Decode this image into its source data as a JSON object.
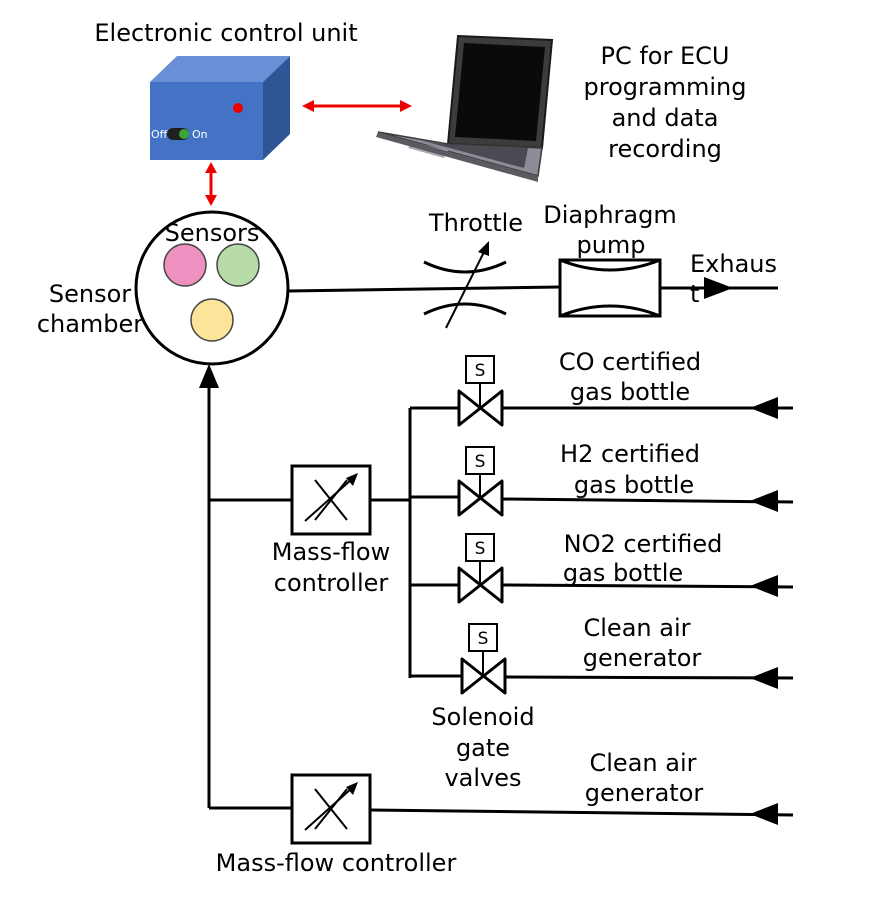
{
  "labels": {
    "ecu": "Electronic control unit",
    "pc": [
      "PC for ECU",
      "programming",
      "and data",
      "recording"
    ],
    "sensors": "Sensors",
    "sensor_chamber": [
      "Sensor",
      "chamber"
    ],
    "throttle": "Throttle",
    "diaphragm_pump": [
      "Diaphragm",
      "pump"
    ],
    "exhaust": [
      "Exhaus",
      "t"
    ],
    "co_bottle": [
      "CO certified",
      "gas bottle"
    ],
    "h2_bottle": [
      "H2 certified",
      "gas bottle"
    ],
    "no2_bottle": [
      "NO2 certified",
      "gas bottle"
    ],
    "clean_air_1": [
      "Clean air",
      "generator"
    ],
    "clean_air_2": [
      "Clean air",
      "generator"
    ],
    "mfc_1": [
      "Mass-flow",
      "controller"
    ],
    "mfc_2": "Mass-flow controller",
    "solenoid": [
      "Solenoid",
      "gate",
      "valves"
    ],
    "switch_off": "Off",
    "switch_on": "On",
    "valve_letter": "S"
  },
  "colors": {
    "ecu_front": "#4472c4",
    "ecu_top": "#6b8fd6",
    "ecu_side": "#2f5597",
    "link_arrow": "#ee0000",
    "sensor_pink": "#ee90c0",
    "sensor_green": "#b8dca8",
    "sensor_yellow": "#fde49a",
    "switch_knob": "#3aa63a"
  },
  "icons": {
    "laptop": "laptop-icon",
    "ecu_box": "ecu-box-icon",
    "throttle": "throttle-valve-icon",
    "pump": "diaphragm-pump-icon",
    "mfc": "mass-flow-controller-icon",
    "valve": "solenoid-valve-icon"
  }
}
